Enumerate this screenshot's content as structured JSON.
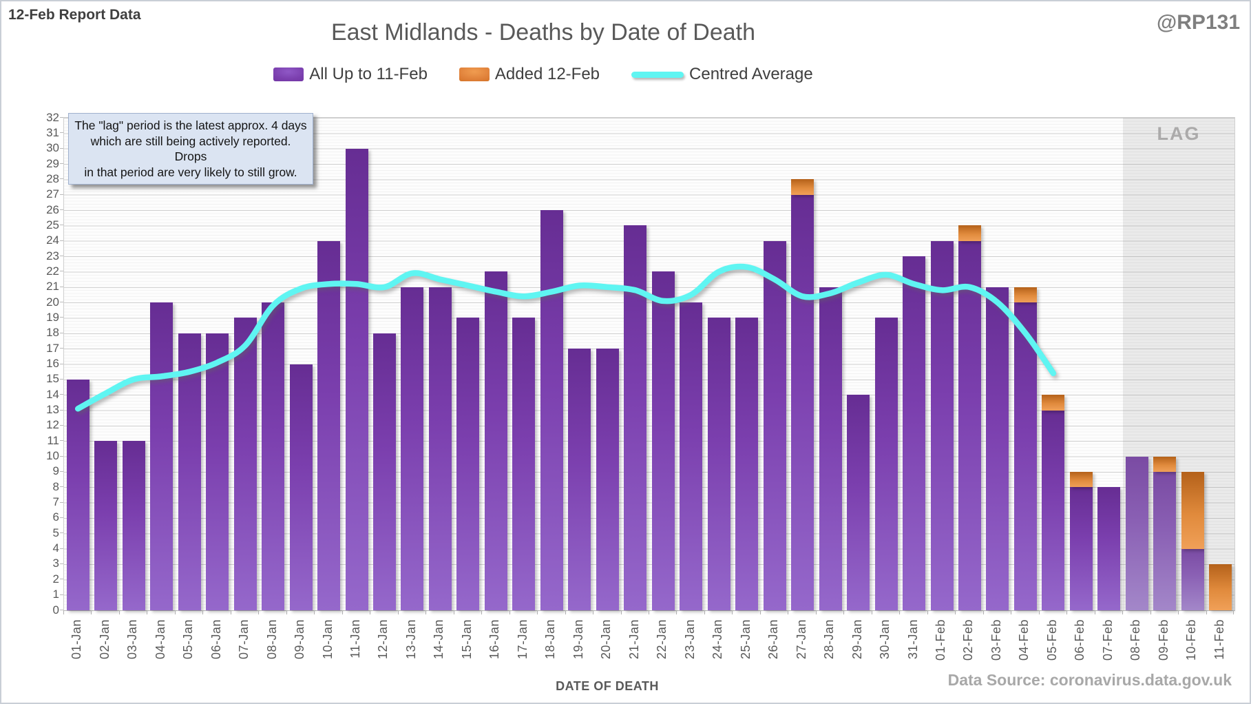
{
  "header": {
    "report_label": "12-Feb Report Data",
    "handle": "@RP131"
  },
  "title": "East Midlands - Deaths by Date of Death",
  "legend": [
    {
      "label": "All Up to 11-Feb",
      "swatch": "purple-bar"
    },
    {
      "label": "Added 12-Feb",
      "swatch": "orange-bar"
    },
    {
      "label": "Centred Average",
      "swatch": "cyan-line"
    }
  ],
  "annotation": {
    "text": "The \"lag\" period is the latest approx. 4 days\nwhich are still being actively reported.  Drops\nin that period are very likely to still grow."
  },
  "lag": {
    "label": "LAG"
  },
  "x_axis": {
    "title": "DATE OF DEATH"
  },
  "y_axis": {
    "min": 0,
    "max": 32,
    "step": 1,
    "tick_labels": [
      0,
      1,
      2,
      3,
      4,
      5,
      6,
      7,
      8,
      9,
      10,
      11,
      12,
      13,
      14,
      15,
      16,
      17,
      18,
      19,
      20,
      21,
      22,
      23,
      24,
      25,
      26,
      27,
      28,
      29,
      30,
      31,
      32
    ]
  },
  "footer": {
    "data_source": "Data Source: coronavirus.data.gov.uk"
  },
  "colors": {
    "purple": "#7030A0",
    "orange": "#ED7D31",
    "cyan": "#5FF5F2",
    "axis_text": "#595959",
    "title_text": "#595959",
    "lag_band": "#e9e9e9",
    "annotation_fill": "#dbe4f2"
  },
  "chart_data": {
    "type": "bar",
    "title": "East Midlands - Deaths by Date of Death",
    "xlabel": "DATE OF DEATH",
    "ylabel": "",
    "ylim": [
      0,
      32
    ],
    "grid": true,
    "legend_position": "top",
    "categories": [
      "01-Jan",
      "02-Jan",
      "03-Jan",
      "04-Jan",
      "05-Jan",
      "06-Jan",
      "07-Jan",
      "08-Jan",
      "09-Jan",
      "10-Jan",
      "11-Jan",
      "12-Jan",
      "13-Jan",
      "14-Jan",
      "15-Jan",
      "16-Jan",
      "17-Jan",
      "18-Jan",
      "19-Jan",
      "20-Jan",
      "21-Jan",
      "22-Jan",
      "23-Jan",
      "24-Jan",
      "25-Jan",
      "26-Jan",
      "27-Jan",
      "28-Jan",
      "29-Jan",
      "30-Jan",
      "31-Jan",
      "01-Feb",
      "02-Feb",
      "03-Feb",
      "04-Feb",
      "05-Feb",
      "06-Feb",
      "07-Feb",
      "08-Feb",
      "09-Feb",
      "10-Feb",
      "11-Feb"
    ],
    "series": [
      {
        "name": "All Up to 11-Feb",
        "type": "bar",
        "stack": "deaths",
        "color": "#7030A0",
        "values": [
          15,
          11,
          11,
          20,
          18,
          18,
          19,
          20,
          16,
          24,
          30,
          18,
          21,
          21,
          19,
          22,
          19,
          26,
          17,
          17,
          25,
          22,
          20,
          19,
          19,
          24,
          27,
          21,
          14,
          19,
          23,
          24,
          24,
          21,
          20,
          13,
          8,
          8,
          10,
          9,
          4,
          0
        ]
      },
      {
        "name": "Added 12-Feb",
        "type": "bar",
        "stack": "deaths",
        "color": "#ED7D31",
        "values": [
          0,
          0,
          0,
          0,
          0,
          0,
          0,
          0,
          0,
          0,
          0,
          0,
          0,
          0,
          0,
          0,
          0,
          0,
          0,
          0,
          0,
          0,
          0,
          0,
          0,
          0,
          1,
          0,
          0,
          0,
          0,
          0,
          1,
          0,
          1,
          1,
          1,
          0,
          0,
          1,
          5,
          3
        ]
      },
      {
        "name": "Centred Average",
        "type": "line",
        "color": "#5FF5F2",
        "values": [
          13.1,
          14.1,
          15.0,
          15.2,
          15.5,
          16.1,
          17.2,
          19.8,
          20.9,
          21.2,
          21.2,
          21.0,
          21.9,
          21.5,
          21.1,
          20.7,
          20.4,
          20.7,
          21.1,
          21.0,
          20.8,
          20.1,
          20.5,
          22.0,
          22.3,
          21.5,
          20.4,
          20.6,
          21.3,
          21.8,
          21.2,
          20.8,
          21.0,
          20.0,
          18.0,
          15.4,
          null,
          null,
          null,
          null,
          null,
          null
        ]
      }
    ],
    "lag_region": {
      "from": "08-Feb",
      "to": "11-Feb",
      "label": "LAG"
    }
  }
}
